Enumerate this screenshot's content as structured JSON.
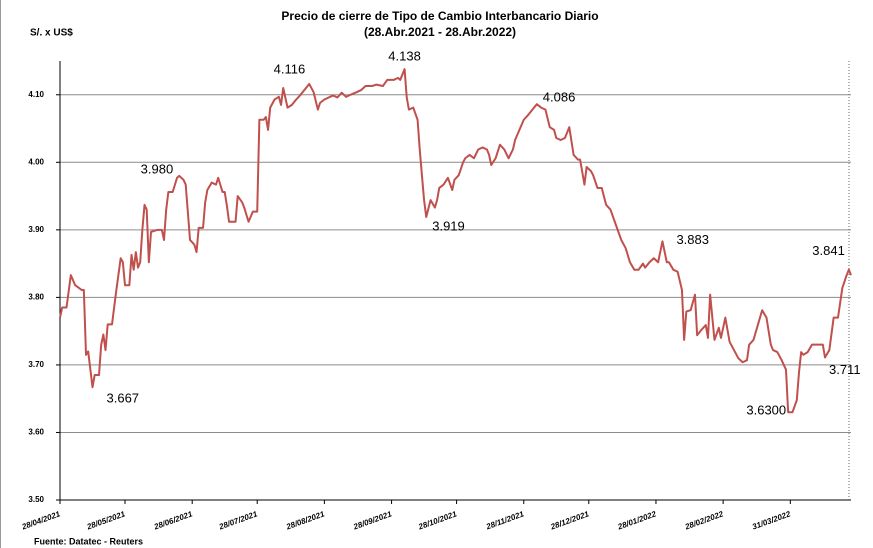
{
  "chart_data": {
    "type": "line",
    "title": "Precio de cierre de Tipo de Cambio Interbancario Diario",
    "subtitle": "(28.Abr.2021 - 28.Abr.2022)",
    "y_label": "S/. x US$",
    "source": "Fuente: Datatec - Reuters",
    "x": [
      "28/04/2021",
      "29/04/2021",
      "01/05/2021",
      "03/05/2021",
      "05/05/2021",
      "08/05/2021",
      "09/05/2021",
      "10/05/2021",
      "11/05/2021",
      "13/05/2021",
      "14/05/2021",
      "16/05/2021",
      "17/05/2021",
      "18/05/2021",
      "19/05/2021",
      "20/05/2021",
      "22/05/2021",
      "24/05/2021",
      "26/05/2021",
      "27/05/2021",
      "28/05/2021",
      "30/05/2021",
      "31/05/2021",
      "01/06/2021",
      "02/06/2021",
      "03/06/2021",
      "04/06/2021",
      "05/06/2021",
      "06/06/2021",
      "07/06/2021",
      "08/06/2021",
      "09/06/2021",
      "12/06/2021",
      "14/06/2021",
      "15/06/2021",
      "16/06/2021",
      "17/06/2021",
      "19/06/2021",
      "21/06/2021",
      "22/06/2021",
      "24/06/2021",
      "25/06/2021",
      "27/06/2021",
      "29/06/2021",
      "30/06/2021",
      "01/07/2021",
      "03/07/2021",
      "04/07/2021",
      "05/07/2021",
      "07/07/2021",
      "09/07/2021",
      "10/07/2021",
      "12/07/2021",
      "13/07/2021",
      "14/07/2021",
      "15/07/2021",
      "18/07/2021",
      "19/07/2021",
      "21/07/2021",
      "22/07/2021",
      "24/07/2021",
      "26/07/2021",
      "28/07/2021",
      "29/07/2021",
      "31/07/2021",
      "01/08/2021",
      "02/08/2021",
      "03/08/2021",
      "05/08/2021",
      "07/08/2021",
      "08/08/2021",
      "09/08/2021",
      "11/08/2021",
      "13/08/2021",
      "15/08/2021",
      "17/08/2021",
      "21/08/2021",
      "23/08/2021",
      "25/08/2021",
      "26/08/2021",
      "28/08/2021",
      "01/09/2021",
      "03/09/2021",
      "05/09/2021",
      "07/09/2021",
      "09/09/2021",
      "12/09/2021",
      "14/09/2021",
      "16/09/2021",
      "19/09/2021",
      "21/09/2021",
      "24/09/2021",
      "26/09/2021",
      "29/09/2021",
      "01/10/2021",
      "02/10/2021",
      "04/10/2021",
      "05/10/2021",
      "06/10/2021",
      "08/10/2021",
      "10/10/2021",
      "11/10/2021",
      "12/10/2021",
      "13/10/2021",
      "14/10/2021",
      "16/10/2021",
      "18/10/2021",
      "19/10/2021",
      "20/10/2021",
      "22/10/2021",
      "24/10/2021",
      "26/10/2021",
      "27/10/2021",
      "29/10/2021",
      "31/10/2021",
      "01/11/2021",
      "03/11/2021",
      "05/11/2021",
      "07/11/2021",
      "09/11/2021",
      "11/11/2021",
      "12/11/2021",
      "13/11/2021",
      "15/11/2021",
      "17/11/2021",
      "19/11/2021",
      "21/11/2021",
      "23/11/2021",
      "24/11/2021",
      "26/11/2021",
      "28/11/2021",
      "30/11/2021",
      "02/12/2021",
      "04/12/2021",
      "06/12/2021",
      "08/12/2021",
      "10/12/2021",
      "12/12/2021",
      "13/12/2021",
      "15/12/2021",
      "17/12/2021",
      "19/12/2021",
      "21/12/2021",
      "23/12/2021",
      "24/12/2021",
      "26/12/2021",
      "27/12/2021",
      "29/12/2021",
      "30/12/2021",
      "01/01/2022",
      "03/01/2022",
      "05/01/2022",
      "07/01/2022",
      "09/01/2022",
      "10/01/2022",
      "12/01/2022",
      "14/01/2022",
      "16/01/2022",
      "18/01/2022",
      "20/01/2022",
      "22/01/2022",
      "23/01/2022",
      "25/01/2022",
      "27/01/2022",
      "29/01/2022",
      "31/01/2022",
      "02/02/2022",
      "03/02/2022",
      "05/02/2022",
      "07/02/2022",
      "09/02/2022",
      "10/02/2022",
      "11/02/2022",
      "13/02/2022",
      "15/02/2022",
      "16/02/2022",
      "18/02/2022",
      "20/02/2022",
      "21/02/2022",
      "22/02/2022",
      "24/02/2022",
      "26/02/2022",
      "27/02/2022",
      "01/03/2022",
      "03/03/2022",
      "05/03/2022",
      "07/03/2022",
      "09/03/2022",
      "11/03/2022",
      "12/03/2022",
      "14/03/2022",
      "16/03/2022",
      "18/03/2022",
      "20/03/2022",
      "22/03/2022",
      "23/03/2022",
      "25/03/2022",
      "27/03/2022",
      "29/03/2022",
      "30/03/2022",
      "01/04/2022",
      "03/04/2022",
      "04/04/2022",
      "05/04/2022",
      "06/04/2022",
      "08/04/2022",
      "10/04/2022",
      "13/04/2022",
      "15/04/2022",
      "16/04/2022",
      "18/04/2022",
      "20/04/2022",
      "22/04/2022",
      "24/04/2022",
      "26/04/2022",
      "27/04/2022",
      "28/04/2022"
    ],
    "series": [
      {
        "color": "#c0504d",
        "values": [
          3.77,
          3.785,
          3.785,
          3.833,
          3.818,
          3.811,
          3.811,
          3.715,
          3.72,
          3.667,
          3.685,
          3.685,
          3.73,
          3.745,
          3.722,
          3.76,
          3.76,
          3.811,
          3.858,
          3.852,
          3.818,
          3.818,
          3.863,
          3.841,
          3.867,
          3.844,
          3.852,
          3.9,
          3.937,
          3.93,
          3.852,
          3.897,
          3.9,
          3.9,
          3.885,
          3.93,
          3.956,
          3.956,
          3.977,
          3.98,
          3.974,
          3.967,
          3.885,
          3.878,
          3.867,
          3.903,
          3.903,
          3.941,
          3.959,
          3.97,
          3.967,
          3.977,
          3.956,
          3.956,
          3.936,
          3.912,
          3.912,
          3.95,
          3.941,
          3.933,
          3.912,
          3.927,
          3.927,
          4.063,
          4.063,
          4.067,
          4.048,
          4.081,
          4.093,
          4.097,
          4.085,
          4.11,
          4.081,
          4.085,
          4.093,
          4.1,
          4.116,
          4.104,
          4.078,
          4.088,
          4.093,
          4.099,
          4.096,
          4.103,
          4.097,
          4.1,
          4.104,
          4.107,
          4.113,
          4.113,
          4.115,
          4.113,
          4.122,
          4.122,
          4.125,
          4.122,
          4.138,
          4.096,
          4.078,
          4.081,
          4.063,
          4.019,
          3.981,
          3.944,
          3.919,
          3.944,
          3.933,
          3.944,
          3.962,
          3.967,
          3.977,
          3.959,
          3.974,
          3.981,
          4.0,
          4.006,
          4.011,
          4.006,
          4.019,
          4.022,
          4.019,
          4.011,
          3.996,
          4.006,
          4.026,
          4.019,
          4.006,
          4.019,
          4.033,
          4.048,
          4.063,
          4.07,
          4.078,
          4.086,
          4.081,
          4.078,
          4.052,
          4.048,
          4.036,
          4.033,
          4.036,
          4.052,
          4.011,
          4.004,
          4.004,
          3.967,
          3.993,
          3.987,
          3.981,
          3.962,
          3.962,
          3.937,
          3.93,
          3.912,
          3.903,
          3.885,
          3.873,
          3.852,
          3.841,
          3.841,
          3.85,
          3.844,
          3.852,
          3.858,
          3.852,
          3.883,
          3.852,
          3.852,
          3.841,
          3.838,
          3.811,
          3.737,
          3.779,
          3.781,
          3.804,
          3.744,
          3.752,
          3.759,
          3.74,
          3.804,
          3.737,
          3.755,
          3.74,
          3.77,
          3.734,
          3.722,
          3.71,
          3.704,
          3.707,
          3.73,
          3.737,
          3.759,
          3.781,
          3.77,
          3.73,
          3.722,
          3.719,
          3.707,
          3.693,
          3.63,
          3.63,
          3.648,
          3.689,
          3.719,
          3.715,
          3.719,
          3.73,
          3.73,
          3.73,
          3.711,
          3.722,
          3.77,
          3.77,
          3.814,
          3.833,
          3.841,
          3.833
        ]
      }
    ],
    "xlim": [
      "28/04/2021",
      "28/04/2022"
    ],
    "xticks": [
      "28/04/2021",
      "28/05/2021",
      "28/06/2021",
      "28/07/2021",
      "28/08/2021",
      "28/09/2021",
      "28/10/2021",
      "28/11/2021",
      "28/12/2021",
      "28/01/2022",
      "28/02/2022",
      "31/03/2022"
    ],
    "ylim": [
      3.5,
      4.15
    ],
    "yticks": [
      {
        "value": 3.5,
        "label": "3.50"
      },
      {
        "value": 3.6,
        "label": "3.60"
      },
      {
        "value": 3.7,
        "label": "3.70"
      },
      {
        "value": 3.8,
        "label": "3.80"
      },
      {
        "value": 3.9,
        "label": "3.90"
      },
      {
        "value": 4.0,
        "label": "4.00"
      },
      {
        "value": 4.1,
        "label": "4.10"
      }
    ],
    "grid": true,
    "annotations": [
      {
        "x": "13/05/2021",
        "value": 3.667,
        "label": "3.667"
      },
      {
        "x": "22/06/2021",
        "value": 3.98,
        "label": "3.980"
      },
      {
        "x": "21/08/2021",
        "value": 4.116,
        "label": "4.116"
      },
      {
        "x": "04/10/2021",
        "value": 4.138,
        "label": "4.138"
      },
      {
        "x": "14/10/2021",
        "value": 3.919,
        "label": "3.919"
      },
      {
        "x": "04/12/2021",
        "value": 4.086,
        "label": "4.086"
      },
      {
        "x": "31/01/2022",
        "value": 3.883,
        "label": "3.883"
      },
      {
        "x": "30/03/2022",
        "value": 3.63,
        "label": "3.6300"
      },
      {
        "x": "16/04/2022",
        "value": 3.711,
        "label": "3.711"
      },
      {
        "x": "27/04/2022",
        "value": 3.841,
        "label": "3.841"
      }
    ]
  }
}
